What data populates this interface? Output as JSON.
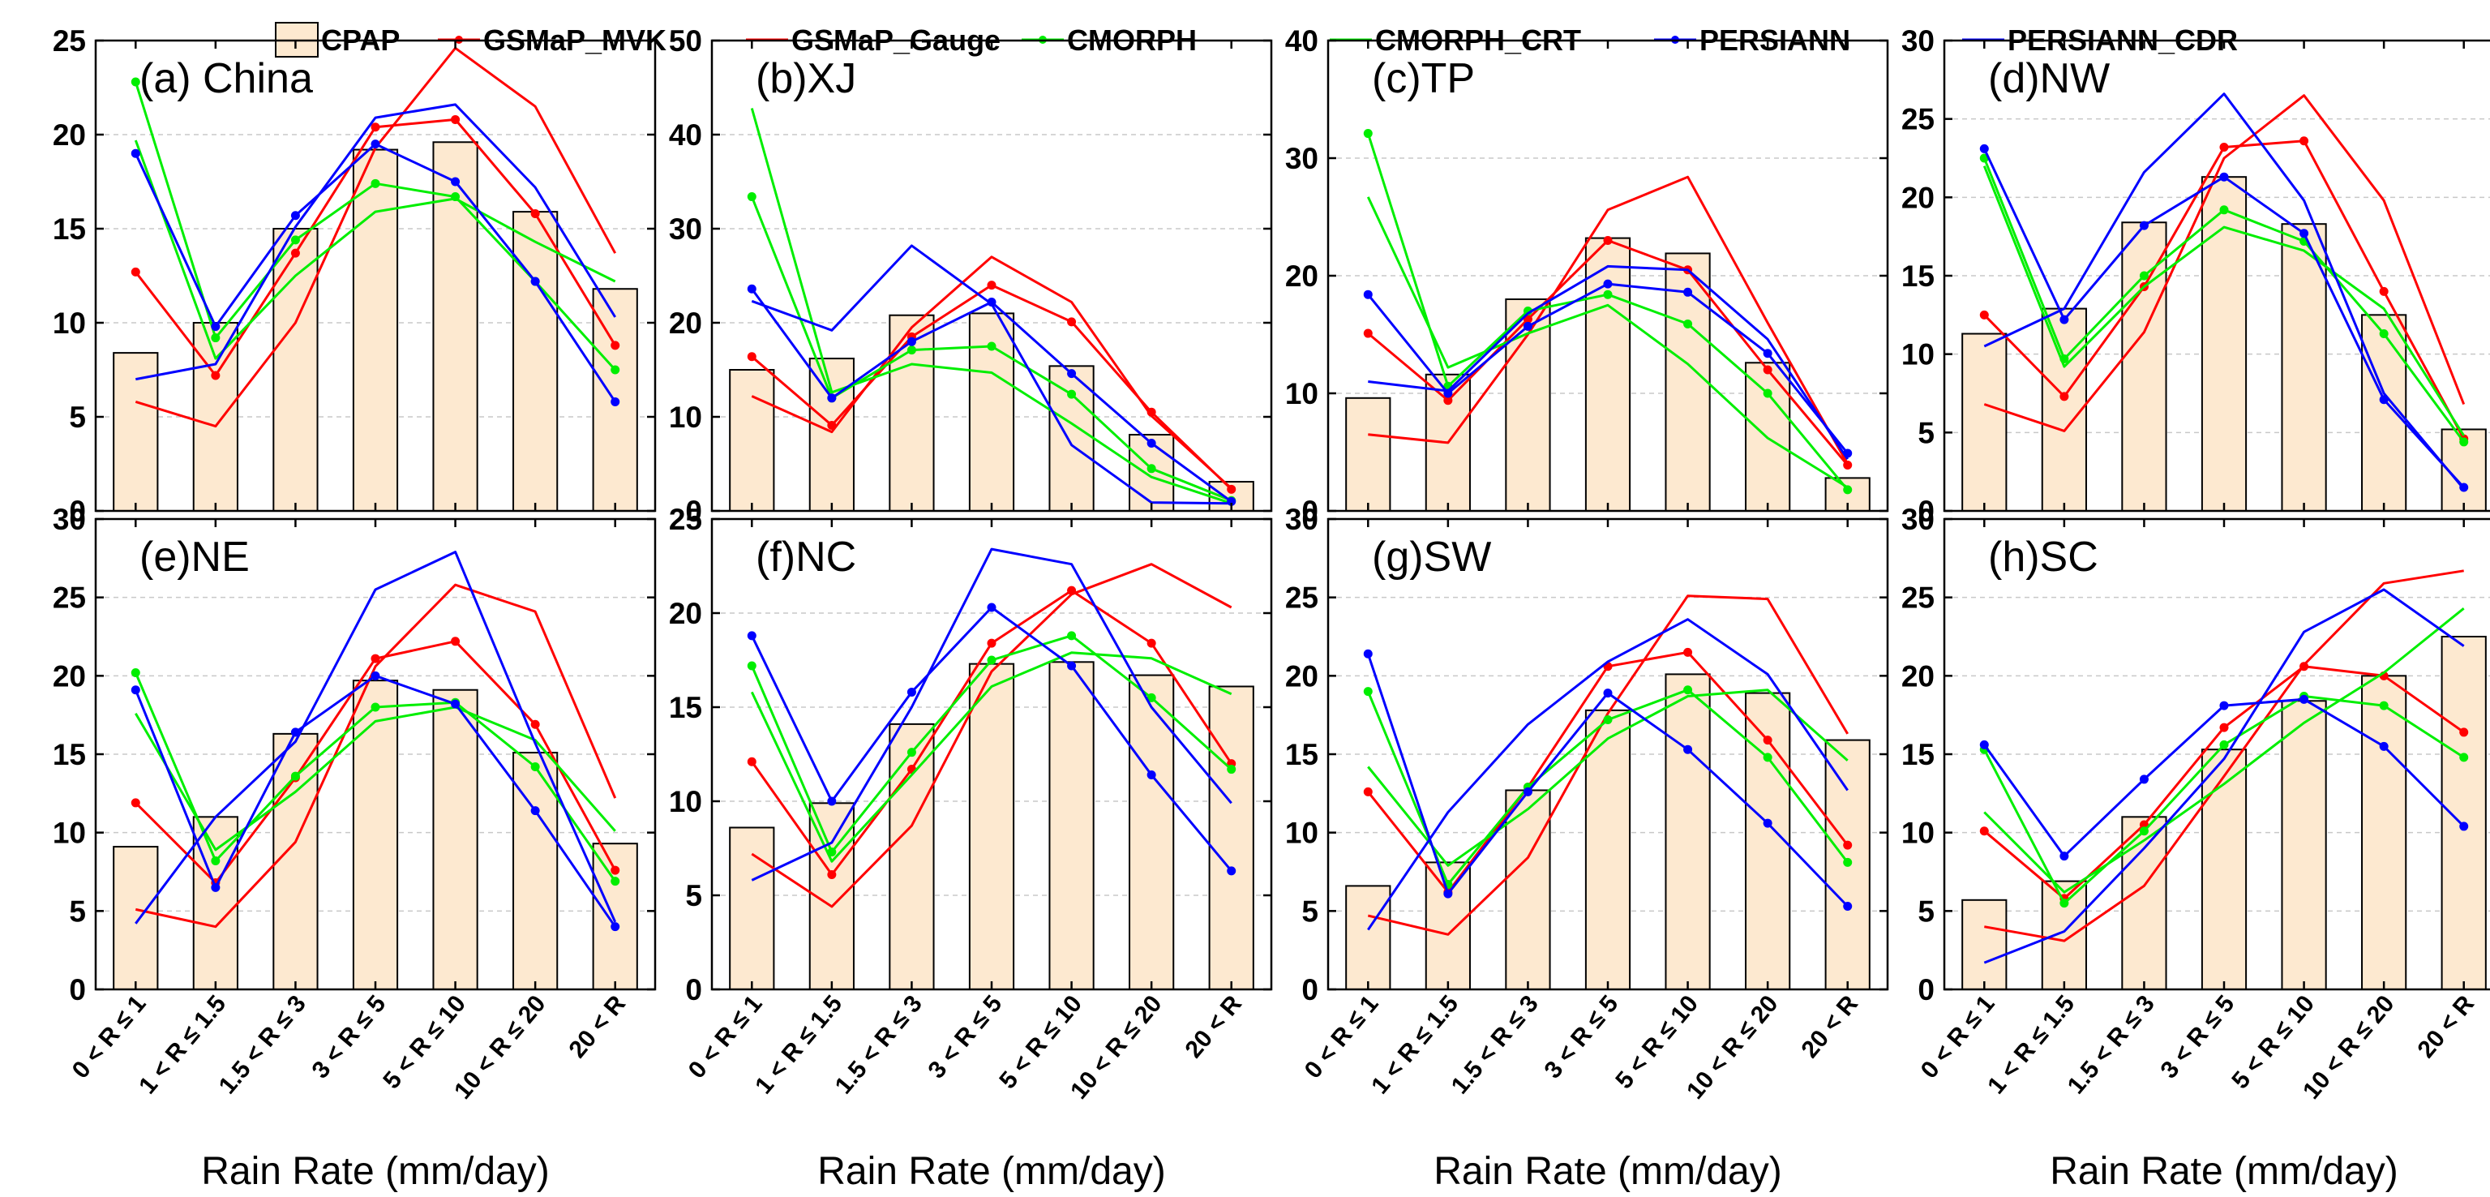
{
  "figure": {
    "legend": [
      {
        "name": "CPAP",
        "kind": "bar"
      },
      {
        "name": "GSMaP_MVK",
        "kind": "line",
        "color": "#ff0000",
        "marker": true
      },
      {
        "name": "GSMaP_Gauge",
        "kind": "line",
        "color": "#ff0000",
        "marker": false
      },
      {
        "name": "CMORPH",
        "kind": "line",
        "color": "#00ee00",
        "marker": true
      },
      {
        "name": "CMORPH_CRT",
        "kind": "line",
        "color": "#00ee00",
        "marker": false
      },
      {
        "name": "PERSIANN",
        "kind": "line",
        "color": "#0000ff",
        "marker": true
      },
      {
        "name": "PERSIANN_CDR",
        "kind": "line",
        "color": "#0000ff",
        "marker": false
      }
    ],
    "colors": {
      "bar_fill": "#fde9d0",
      "bar_edge": "#000000",
      "grid": "#c8c8c8"
    }
  },
  "chart_data": [
    {
      "type": "bar+line",
      "title": "(a) China",
      "xlabel": "Rain Rate (mm/day)",
      "ylabel": "",
      "categories": [
        "0 < R ≤ 1",
        "1 < R ≤ 1.5",
        "1.5 < R ≤ 3",
        "3 < R ≤ 5",
        "5 < R ≤ 10",
        "10 < R ≤ 20",
        "20 < R"
      ],
      "ylim": [
        0,
        25
      ],
      "yticks": [
        0,
        5,
        10,
        15,
        20,
        25
      ],
      "series": [
        {
          "name": "CPAP",
          "values": [
            8.4,
            10.0,
            15.0,
            19.2,
            19.6,
            15.9,
            11.8
          ]
        },
        {
          "name": "GSMaP_MVK",
          "values": [
            12.7,
            7.2,
            13.7,
            20.4,
            20.8,
            15.8,
            8.8
          ]
        },
        {
          "name": "GSMaP_Gauge",
          "values": [
            5.8,
            4.5,
            10.0,
            19.3,
            24.6,
            21.5,
            13.7
          ]
        },
        {
          "name": "CMORPH",
          "values": [
            22.8,
            9.2,
            14.4,
            17.4,
            16.7,
            12.2,
            7.5
          ]
        },
        {
          "name": "CMORPH_CRT",
          "values": [
            19.7,
            8.1,
            12.5,
            15.9,
            16.6,
            14.3,
            12.2
          ]
        },
        {
          "name": "PERSIANN",
          "values": [
            19.0,
            9.8,
            15.7,
            19.5,
            17.5,
            12.2,
            5.8
          ]
        },
        {
          "name": "PERSIANN_CDR",
          "values": [
            7.0,
            7.8,
            15.1,
            20.9,
            21.6,
            17.2,
            10.3
          ]
        }
      ]
    },
    {
      "type": "bar+line",
      "title": "(b)XJ",
      "xlabel": "Rain Rate (mm/day)",
      "ylabel": "",
      "categories": [
        "0 < R ≤ 1",
        "1 < R ≤ 1.5",
        "1.5 < R ≤ 3",
        "3 < R ≤ 5",
        "5 < R ≤ 10",
        "10 < R ≤ 20",
        "20 < R"
      ],
      "ylim": [
        0,
        50
      ],
      "yticks": [
        0,
        10,
        20,
        30,
        40,
        50
      ],
      "series": [
        {
          "name": "CPAP",
          "values": [
            15.0,
            16.2,
            20.8,
            21.0,
            15.4,
            8.1,
            3.1
          ]
        },
        {
          "name": "GSMaP_MVK",
          "values": [
            16.4,
            9.1,
            18.5,
            24.0,
            20.1,
            10.5,
            2.3
          ]
        },
        {
          "name": "GSMaP_Gauge",
          "values": [
            12.2,
            8.4,
            19.5,
            27.0,
            22.2,
            10.1,
            2.4
          ]
        },
        {
          "name": "CMORPH",
          "values": [
            33.4,
            12.0,
            17.1,
            17.5,
            12.4,
            4.5,
            1.1
          ]
        },
        {
          "name": "CMORPH_CRT",
          "values": [
            42.8,
            12.6,
            15.6,
            14.7,
            9.3,
            3.6,
            0.8
          ]
        },
        {
          "name": "PERSIANN",
          "values": [
            23.6,
            12.0,
            18.0,
            22.2,
            14.6,
            7.2,
            1.0
          ]
        },
        {
          "name": "PERSIANN_CDR",
          "values": [
            22.3,
            19.2,
            28.2,
            22.0,
            7.0,
            0.9,
            0.8
          ]
        }
      ]
    },
    {
      "type": "bar+line",
      "title": "(c)TP",
      "xlabel": "Rain Rate (mm/day)",
      "ylabel": "",
      "categories": [
        "0 < R ≤ 1",
        "1 < R ≤ 1.5",
        "1.5 < R ≤ 3",
        "3 < R ≤ 5",
        "5 < R ≤ 10",
        "10 < R ≤ 20",
        "20 < R"
      ],
      "ylim": [
        0,
        40
      ],
      "yticks": [
        0,
        10,
        20,
        30,
        40
      ],
      "series": [
        {
          "name": "CPAP",
          "values": [
            9.6,
            11.6,
            18.0,
            23.2,
            21.9,
            12.6,
            2.8
          ]
        },
        {
          "name": "GSMaP_MVK",
          "values": [
            15.1,
            9.4,
            16.3,
            23.0,
            20.5,
            12.0,
            3.9
          ]
        },
        {
          "name": "GSMaP_Gauge",
          "values": [
            6.5,
            5.8,
            15.0,
            25.6,
            28.4,
            16.0,
            4.0
          ]
        },
        {
          "name": "CMORPH",
          "values": [
            32.1,
            10.6,
            17.0,
            18.4,
            15.9,
            10.0,
            1.8
          ]
        },
        {
          "name": "CMORPH_CRT",
          "values": [
            26.7,
            12.2,
            15.1,
            17.5,
            12.5,
            6.2,
            2.0
          ]
        },
        {
          "name": "PERSIANN",
          "values": [
            18.4,
            10.0,
            15.7,
            19.3,
            18.6,
            13.4,
            4.9
          ]
        },
        {
          "name": "PERSIANN_CDR",
          "values": [
            11.0,
            10.2,
            16.8,
            20.8,
            20.5,
            14.6,
            4.4
          ]
        }
      ]
    },
    {
      "type": "bar+line",
      "title": "(d)NW",
      "xlabel": "Rain Rate (mm/day)",
      "ylabel": "",
      "categories": [
        "0 < R ≤ 1",
        "1 < R ≤ 1.5",
        "1.5 < R ≤ 3",
        "3 < R ≤ 5",
        "5 < R ≤ 10",
        "10 < R ≤ 20",
        "20 < R"
      ],
      "ylim": [
        0,
        30
      ],
      "yticks": [
        0,
        5,
        10,
        15,
        20,
        25,
        30
      ],
      "series": [
        {
          "name": "CPAP",
          "values": [
            11.3,
            12.9,
            18.4,
            21.3,
            18.3,
            12.5,
            5.2
          ]
        },
        {
          "name": "GSMaP_MVK",
          "values": [
            12.5,
            7.3,
            14.3,
            23.2,
            23.6,
            14.0,
            4.6
          ]
        },
        {
          "name": "GSMaP_Gauge",
          "values": [
            6.8,
            5.1,
            11.4,
            22.5,
            26.5,
            19.8,
            6.8
          ]
        },
        {
          "name": "CMORPH",
          "values": [
            22.5,
            9.7,
            15.0,
            19.2,
            17.2,
            11.3,
            4.4
          ]
        },
        {
          "name": "CMORPH_CRT",
          "values": [
            22.0,
            9.2,
            14.3,
            18.1,
            16.6,
            12.9,
            4.8
          ]
        },
        {
          "name": "PERSIANN",
          "values": [
            23.1,
            12.2,
            18.2,
            21.3,
            17.7,
            7.1,
            1.5
          ]
        },
        {
          "name": "PERSIANN_CDR",
          "values": [
            10.5,
            12.9,
            21.6,
            26.6,
            19.8,
            7.5,
            1.4
          ]
        }
      ]
    },
    {
      "type": "bar+line",
      "title": "(e)NE",
      "xlabel": "Rain Rate (mm/day)",
      "ylabel": "",
      "categories": [
        "0 < R ≤ 1",
        "1 < R ≤ 1.5",
        "1.5 < R ≤ 3",
        "3 < R ≤ 5",
        "5 < R ≤ 10",
        "10 < R ≤ 20",
        "20 < R"
      ],
      "ylim": [
        0,
        30
      ],
      "yticks": [
        0,
        5,
        10,
        15,
        20,
        25,
        30
      ],
      "series": [
        {
          "name": "CPAP",
          "values": [
            9.1,
            11.0,
            16.3,
            19.7,
            19.1,
            15.1,
            9.3
          ]
        },
        {
          "name": "GSMaP_MVK",
          "values": [
            11.9,
            6.8,
            13.5,
            21.1,
            22.2,
            16.9,
            7.6
          ]
        },
        {
          "name": "GSMaP_Gauge",
          "values": [
            5.1,
            4.0,
            9.4,
            20.6,
            25.8,
            24.1,
            12.2
          ]
        },
        {
          "name": "CMORPH",
          "values": [
            20.2,
            8.2,
            13.6,
            18.0,
            18.3,
            14.2,
            6.9
          ]
        },
        {
          "name": "CMORPH_CRT",
          "values": [
            17.6,
            8.9,
            12.6,
            17.1,
            18.0,
            15.9,
            10.1
          ]
        },
        {
          "name": "PERSIANN",
          "values": [
            19.1,
            6.5,
            16.4,
            20.0,
            18.2,
            11.4,
            4.0
          ]
        },
        {
          "name": "PERSIANN_CDR",
          "values": [
            4.2,
            11.0,
            15.8,
            25.5,
            27.9,
            15.7,
            4.3
          ]
        }
      ]
    },
    {
      "type": "bar+line",
      "title": "(f)NC",
      "xlabel": "Rain Rate (mm/day)",
      "ylabel": "",
      "categories": [
        "0 < R ≤ 1",
        "1 < R ≤ 1.5",
        "1.5 < R ≤ 3",
        "3 < R ≤ 5",
        "5 < R ≤ 10",
        "10 < R ≤ 20",
        "20 < R"
      ],
      "ylim": [
        0,
        25
      ],
      "yticks": [
        0,
        5,
        10,
        15,
        20,
        25
      ],
      "series": [
        {
          "name": "CPAP",
          "values": [
            8.6,
            9.9,
            14.1,
            17.3,
            17.4,
            16.7,
            16.1
          ]
        },
        {
          "name": "GSMaP_MVK",
          "values": [
            12.1,
            6.1,
            11.7,
            18.4,
            21.2,
            18.4,
            12.0
          ]
        },
        {
          "name": "GSMaP_Gauge",
          "values": [
            7.2,
            4.4,
            8.7,
            16.9,
            21.0,
            22.6,
            20.3
          ]
        },
        {
          "name": "CMORPH",
          "values": [
            17.2,
            7.3,
            12.6,
            17.5,
            18.8,
            15.5,
            11.7
          ]
        },
        {
          "name": "CMORPH_CRT",
          "values": [
            15.8,
            6.8,
            11.4,
            16.1,
            17.9,
            17.6,
            15.7
          ]
        },
        {
          "name": "PERSIANN",
          "values": [
            18.8,
            10.0,
            15.8,
            20.3,
            17.2,
            11.4,
            6.3
          ]
        },
        {
          "name": "PERSIANN_CDR",
          "values": [
            5.8,
            7.8,
            15.0,
            23.4,
            22.6,
            15.0,
            9.9
          ]
        }
      ]
    },
    {
      "type": "bar+line",
      "title": "(g)SW",
      "xlabel": "Rain Rate (mm/day)",
      "ylabel": "",
      "categories": [
        "0 < R ≤ 1",
        "1 < R ≤ 1.5",
        "1.5 < R ≤ 3",
        "3 < R ≤ 5",
        "5 < R ≤ 10",
        "10 < R ≤ 20",
        "20 < R"
      ],
      "ylim": [
        0,
        30
      ],
      "yticks": [
        0,
        5,
        10,
        15,
        20,
        25,
        30
      ],
      "series": [
        {
          "name": "CPAP",
          "values": [
            6.6,
            8.1,
            12.7,
            17.8,
            20.1,
            18.9,
            15.9
          ]
        },
        {
          "name": "GSMaP_MVK",
          "values": [
            12.6,
            6.2,
            12.9,
            20.6,
            21.5,
            15.9,
            9.2
          ]
        },
        {
          "name": "GSMaP_Gauge",
          "values": [
            4.7,
            3.5,
            8.4,
            17.6,
            25.1,
            24.9,
            16.3
          ]
        },
        {
          "name": "CMORPH",
          "values": [
            19.0,
            6.7,
            12.9,
            17.2,
            19.1,
            14.8,
            8.1
          ]
        },
        {
          "name": "CMORPH_CRT",
          "values": [
            14.2,
            7.9,
            11.5,
            16.0,
            18.7,
            19.1,
            14.6
          ]
        },
        {
          "name": "PERSIANN",
          "values": [
            21.4,
            6.1,
            12.6,
            18.9,
            15.3,
            10.6,
            5.3
          ]
        },
        {
          "name": "PERSIANN_CDR",
          "values": [
            3.8,
            11.3,
            16.9,
            20.9,
            23.6,
            20.1,
            12.7
          ]
        }
      ]
    },
    {
      "type": "bar+line",
      "title": "(h)SC",
      "xlabel": "Rain Rate (mm/day)",
      "ylabel": "",
      "categories": [
        "0 < R ≤ 1",
        "1 < R ≤ 1.5",
        "1.5 < R ≤ 3",
        "3 < R ≤ 5",
        "5 < R ≤ 10",
        "10 < R ≤ 20",
        "20 < R"
      ],
      "ylim": [
        0,
        30
      ],
      "yticks": [
        0,
        5,
        10,
        15,
        20,
        25,
        30
      ],
      "series": [
        {
          "name": "CPAP",
          "values": [
            5.7,
            6.9,
            11.0,
            15.3,
            18.4,
            20.0,
            22.5
          ]
        },
        {
          "name": "GSMaP_MVK",
          "values": [
            10.1,
            5.8,
            10.5,
            16.7,
            20.6,
            20.0,
            16.4
          ]
        },
        {
          "name": "GSMaP_Gauge",
          "values": [
            4.0,
            3.1,
            6.6,
            13.6,
            20.7,
            25.9,
            26.7
          ]
        },
        {
          "name": "CMORPH",
          "values": [
            15.3,
            5.5,
            10.1,
            15.6,
            18.7,
            18.1,
            14.8
          ]
        },
        {
          "name": "CMORPH_CRT",
          "values": [
            11.3,
            6.2,
            9.5,
            13.1,
            17.0,
            20.2,
            24.3
          ]
        },
        {
          "name": "PERSIANN",
          "values": [
            15.6,
            8.5,
            13.4,
            18.1,
            18.5,
            15.5,
            10.4
          ]
        },
        {
          "name": "PERSIANN_CDR",
          "values": [
            1.7,
            3.7,
            9.0,
            14.7,
            22.8,
            25.5,
            21.9
          ]
        }
      ]
    }
  ]
}
